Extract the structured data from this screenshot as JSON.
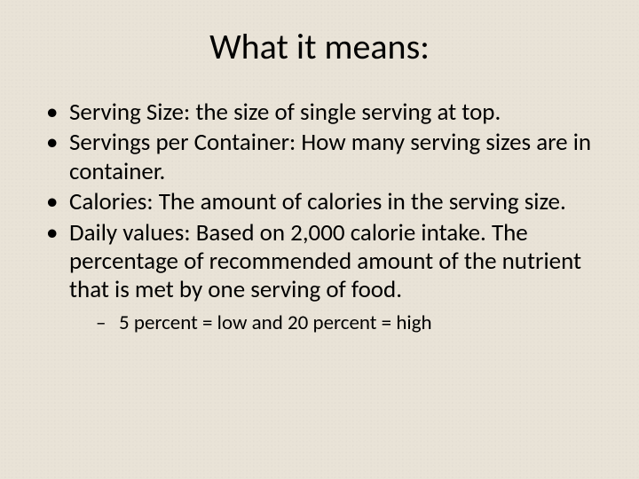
{
  "slide": {
    "background_color": "#e9e3d7",
    "text_color": "#000000",
    "font_family": "Calibri",
    "title": {
      "text": "What it means:",
      "fontsize": 40,
      "weight": 400,
      "align": "center"
    },
    "bullets": {
      "fontsize_level1": 27,
      "fontsize_level2": 23,
      "bullet_char_level1": "•",
      "bullet_char_level2": "–",
      "items": [
        {
          "text": "Serving Size:  the size of single serving at top."
        },
        {
          "text": "Servings per Container:  How many serving sizes are in container."
        },
        {
          "text": "Calories:  The amount of calories in the serving size."
        },
        {
          "text": "Daily values:  Based on 2,000 calorie intake.  The percentage of recommended amount of the nutrient that is met by one serving of food.",
          "children": [
            {
              "text": "5 percent = low and 20 percent = high"
            }
          ]
        }
      ]
    }
  }
}
